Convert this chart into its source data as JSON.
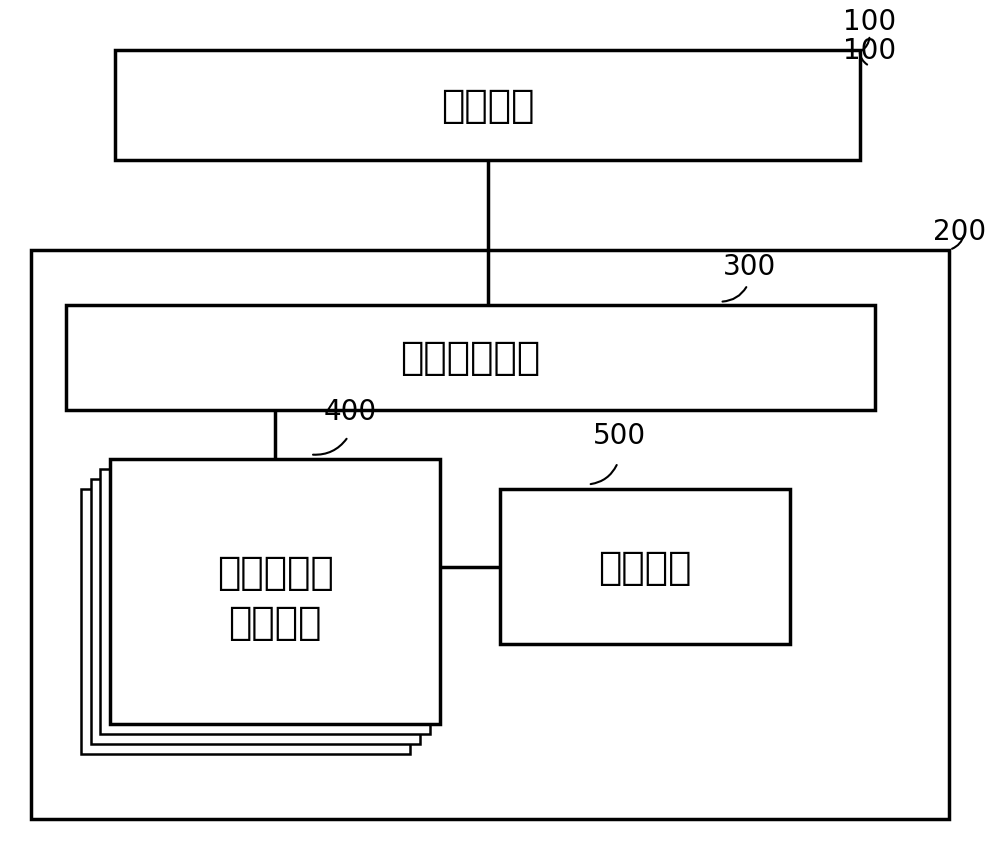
{
  "bg_color": "#ffffff",
  "text_color": "#000000",
  "label_100": "100",
  "label_200": "200",
  "label_300": "300",
  "label_400": "400",
  "label_500": "500",
  "text_host": "主计算机",
  "text_controller": "存储器控制器",
  "text_memory_line1": "存储器单元",
  "text_memory_line2": "阵列单元",
  "text_power": "电源电路",
  "font_size_main": 28,
  "font_size_label": 20,
  "lw_thick": 2.5,
  "lw_thin": 1.8
}
